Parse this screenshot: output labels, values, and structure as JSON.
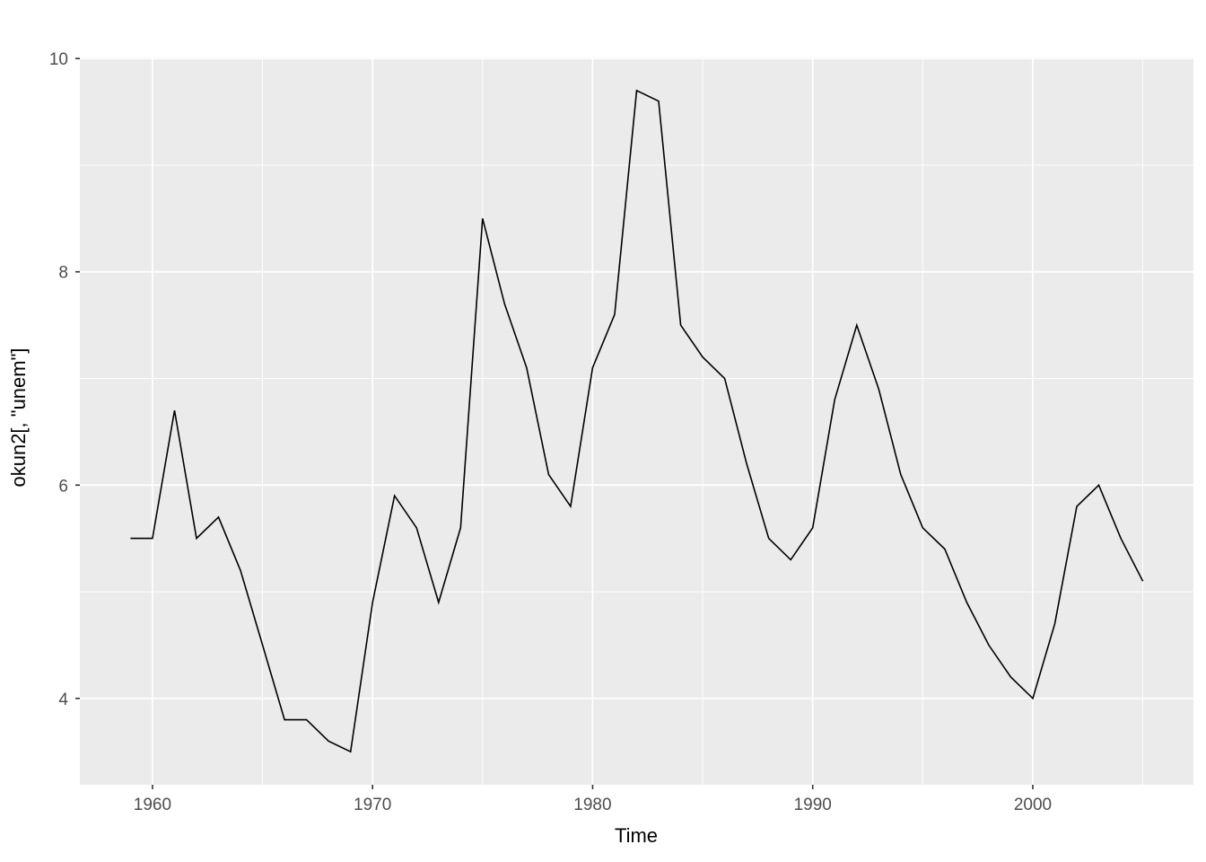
{
  "chart_data": {
    "type": "line",
    "title": "",
    "xlabel": "Time",
    "ylabel": "okun2[, \"unem\"]",
    "x": [
      1959,
      1960,
      1961,
      1962,
      1963,
      1964,
      1965,
      1966,
      1967,
      1968,
      1969,
      1970,
      1971,
      1972,
      1973,
      1974,
      1975,
      1976,
      1977,
      1978,
      1979,
      1980,
      1981,
      1982,
      1983,
      1984,
      1985,
      1986,
      1987,
      1988,
      1989,
      1990,
      1991,
      1992,
      1993,
      1994,
      1995,
      1996,
      1997,
      1998,
      1999,
      2000,
      2001,
      2002,
      2003,
      2004,
      2005
    ],
    "values": [
      5.5,
      5.5,
      6.7,
      5.5,
      5.7,
      5.2,
      4.5,
      3.8,
      3.8,
      3.6,
      3.5,
      4.9,
      5.9,
      5.6,
      4.9,
      5.6,
      8.5,
      7.7,
      7.1,
      6.1,
      5.8,
      7.1,
      7.6,
      9.7,
      9.6,
      7.5,
      7.2,
      7.0,
      6.2,
      5.5,
      5.3,
      5.6,
      6.8,
      7.5,
      6.9,
      6.1,
      5.6,
      5.4,
      4.9,
      4.5,
      4.2,
      4.0,
      4.7,
      5.8,
      6.0,
      5.5,
      5.1
    ],
    "xlim": [
      1956.7,
      2007.3
    ],
    "ylim": [
      3.19,
      10.01
    ],
    "x_major_ticks": [
      1960,
      1970,
      1980,
      1990,
      2000
    ],
    "y_major_ticks": [
      4,
      6,
      8,
      10
    ],
    "x_minor_ticks": [
      1965,
      1975,
      1985,
      1995,
      2005
    ],
    "y_minor_ticks": [
      5,
      7,
      9
    ],
    "grid": "on",
    "legend_position": "none",
    "line_color": "#000000",
    "panel_bg": "#EBEBEB",
    "grid_color": "#FFFFFF",
    "tick_mark_color": "#333333",
    "tick_label_color": "#4D4D4D",
    "axis_title_color": "#000000"
  }
}
